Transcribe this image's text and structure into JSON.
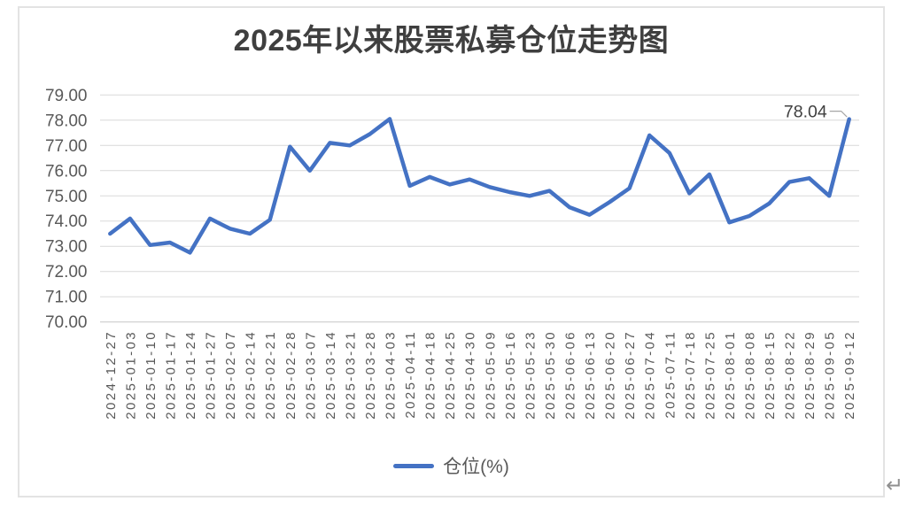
{
  "page": {
    "paragraph_mark": "↵"
  },
  "chart_data": {
    "type": "line",
    "title": "2025年以来股票私募仓位走势图",
    "categories": [
      "2024-12-27",
      "2025-01-03",
      "2025-01-10",
      "2025-01-17",
      "2025-01-24",
      "2025-01-27",
      "2025-02-07",
      "2025-02-14",
      "2025-02-21",
      "2025-02-28",
      "2025-03-07",
      "2025-03-14",
      "2025-03-21",
      "2025-03-28",
      "2025-04-03",
      "2025-04-11",
      "2025-04-18",
      "2025-04-25",
      "2025-04-30",
      "2025-05-09",
      "2025-05-16",
      "2025-05-23",
      "2025-05-30",
      "2025-06-06",
      "2025-06-13",
      "2025-06-20",
      "2025-06-27",
      "2025-07-04",
      "2025-07-11",
      "2025-07-18",
      "2025-07-25",
      "2025-08-01",
      "2025-08-08",
      "2025-08-15",
      "2025-08-22",
      "2025-08-29",
      "2025-09-05",
      "2025-09-12"
    ],
    "series": [
      {
        "name": "仓位(%)",
        "values": [
          73.5,
          74.1,
          73.05,
          73.15,
          72.75,
          74.1,
          73.7,
          73.5,
          74.05,
          76.95,
          76.0,
          77.1,
          77.0,
          77.45,
          78.05,
          75.4,
          75.75,
          75.45,
          75.65,
          75.35,
          75.15,
          75.0,
          75.2,
          74.55,
          74.25,
          74.75,
          75.3,
          77.4,
          76.7,
          75.1,
          75.85,
          73.95,
          74.2,
          74.7,
          75.55,
          75.7,
          75.0,
          78.04
        ]
      }
    ],
    "xlabel": "",
    "ylabel": "",
    "ylim": [
      70,
      79
    ],
    "ytick_step": 1,
    "ytick_decimals": 2,
    "grid": true,
    "legend_position": "bottom",
    "x_labels_rotated_degrees": 90,
    "annotation": {
      "text": "78.04",
      "category": "2025-09-12"
    },
    "colors": {
      "line": "#4472c4",
      "grid": "#d9d9d9",
      "axis_line": "#c6c6c6",
      "axis_text": "#595959",
      "title": "#3f3f3f",
      "data_label": "#404040",
      "leader": "#a6a6a6"
    }
  }
}
